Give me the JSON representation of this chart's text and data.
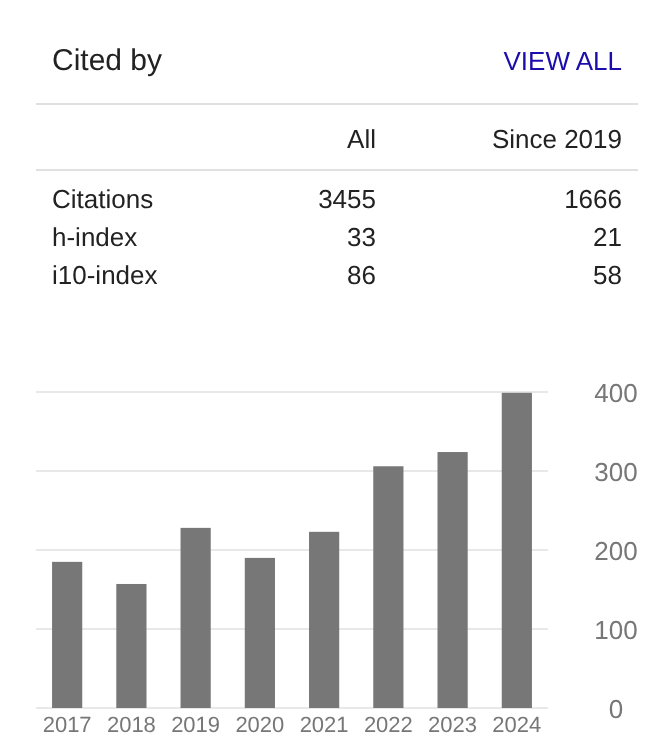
{
  "chart_data": [
    {
      "type": "other",
      "title": "Cited by",
      "annotations": [
        "VIEW ALL"
      ],
      "categories": [
        "Citations",
        "h-index",
        "i10-index"
      ],
      "series": [
        {
          "name": "All",
          "values": [
            3455,
            33,
            86
          ]
        },
        {
          "name": "Since 2019",
          "values": [
            1666,
            21,
            58
          ]
        }
      ],
      "data_labels": true
    },
    {
      "type": "bar",
      "categories": [
        "2017",
        "2018",
        "2019",
        "2020",
        "2021",
        "2022",
        "2023",
        "2024"
      ],
      "values": [
        185,
        157,
        228,
        190,
        223,
        306,
        324,
        399
      ],
      "color": "#777777",
      "ylim": [
        0,
        400
      ],
      "yticks": [
        0,
        100,
        200,
        300,
        400
      ],
      "grid": "y"
    }
  ]
}
